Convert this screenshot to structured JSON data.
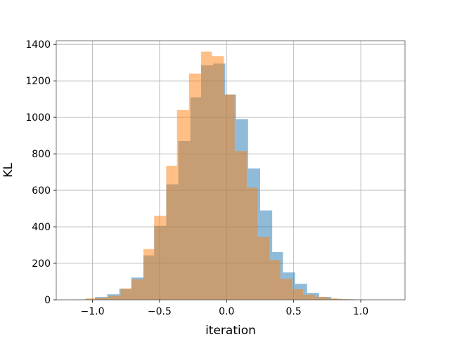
{
  "chart_data": {
    "type": "bar",
    "subtype": "histogram-overlay",
    "title": "",
    "xlabel": "iteration",
    "ylabel": "KL",
    "xlim": [
      -1.27,
      1.33
    ],
    "ylim": [
      0,
      1420
    ],
    "xticks": [
      -1.0,
      -0.5,
      0.0,
      0.5,
      1.0
    ],
    "xtick_labels": [
      "−1.0",
      "−0.5",
      "0.0",
      "0.5",
      "1.0"
    ],
    "yticks": [
      0,
      200,
      400,
      600,
      800,
      1000,
      1200,
      1400
    ],
    "ytick_labels": [
      "0",
      "200",
      "400",
      "600",
      "800",
      "1000",
      "1200",
      "1400"
    ],
    "grid": true,
    "legend": false,
    "series": [
      {
        "color": "#1f77b4",
        "alpha": 0.5,
        "bins": [
          {
            "x0": -1.15,
            "x1": -1.06,
            "count": 1
          },
          {
            "x0": -1.06,
            "x1": -0.98,
            "count": 3
          },
          {
            "x0": -0.98,
            "x1": -0.89,
            "count": 15
          },
          {
            "x0": -0.89,
            "x1": -0.8,
            "count": 30
          },
          {
            "x0": -0.8,
            "x1": -0.71,
            "count": 60
          },
          {
            "x0": -0.71,
            "x1": -0.62,
            "count": 122
          },
          {
            "x0": -0.62,
            "x1": -0.54,
            "count": 243
          },
          {
            "x0": -0.54,
            "x1": -0.45,
            "count": 405
          },
          {
            "x0": -0.45,
            "x1": -0.36,
            "count": 633
          },
          {
            "x0": -0.36,
            "x1": -0.27,
            "count": 870
          },
          {
            "x0": -0.27,
            "x1": -0.19,
            "count": 1110
          },
          {
            "x0": -0.19,
            "x1": -0.1,
            "count": 1285
          },
          {
            "x0": -0.1,
            "x1": -0.01,
            "count": 1295
          },
          {
            "x0": -0.01,
            "x1": 0.07,
            "count": 1125
          },
          {
            "x0": 0.07,
            "x1": 0.16,
            "count": 990
          },
          {
            "x0": 0.16,
            "x1": 0.25,
            "count": 720
          },
          {
            "x0": 0.25,
            "x1": 0.34,
            "count": 490
          },
          {
            "x0": 0.34,
            "x1": 0.42,
            "count": 262
          },
          {
            "x0": 0.42,
            "x1": 0.51,
            "count": 150
          },
          {
            "x0": 0.51,
            "x1": 0.6,
            "count": 88
          },
          {
            "x0": 0.6,
            "x1": 0.69,
            "count": 38
          },
          {
            "x0": 0.69,
            "x1": 0.78,
            "count": 15
          },
          {
            "x0": 0.78,
            "x1": 0.86,
            "count": 5
          },
          {
            "x0": 0.86,
            "x1": 0.95,
            "count": 3
          },
          {
            "x0": 0.95,
            "x1": 1.04,
            "count": 2
          }
        ]
      },
      {
        "color": "#ff7f0e",
        "alpha": 0.5,
        "bins": [
          {
            "x0": -1.05,
            "x1": -0.96,
            "count": 8
          },
          {
            "x0": -0.96,
            "x1": -0.88,
            "count": 12
          },
          {
            "x0": -0.88,
            "x1": -0.79,
            "count": 22
          },
          {
            "x0": -0.79,
            "x1": -0.71,
            "count": 62
          },
          {
            "x0": -0.71,
            "x1": -0.62,
            "count": 112
          },
          {
            "x0": -0.62,
            "x1": -0.54,
            "count": 278
          },
          {
            "x0": -0.54,
            "x1": -0.45,
            "count": 460
          },
          {
            "x0": -0.45,
            "x1": -0.37,
            "count": 735
          },
          {
            "x0": -0.37,
            "x1": -0.28,
            "count": 1040
          },
          {
            "x0": -0.28,
            "x1": -0.19,
            "count": 1240
          },
          {
            "x0": -0.19,
            "x1": -0.11,
            "count": 1360
          },
          {
            "x0": -0.11,
            "x1": -0.02,
            "count": 1335
          },
          {
            "x0": -0.02,
            "x1": 0.06,
            "count": 1125
          },
          {
            "x0": 0.06,
            "x1": 0.15,
            "count": 815
          },
          {
            "x0": 0.15,
            "x1": 0.23,
            "count": 615
          },
          {
            "x0": 0.23,
            "x1": 0.32,
            "count": 345
          },
          {
            "x0": 0.32,
            "x1": 0.4,
            "count": 218
          },
          {
            "x0": 0.4,
            "x1": 0.49,
            "count": 115
          },
          {
            "x0": 0.49,
            "x1": 0.57,
            "count": 58
          },
          {
            "x0": 0.57,
            "x1": 0.66,
            "count": 28
          },
          {
            "x0": 0.66,
            "x1": 0.75,
            "count": 16
          },
          {
            "x0": 0.75,
            "x1": 0.83,
            "count": 8
          },
          {
            "x0": 0.83,
            "x1": 0.92,
            "count": 4
          }
        ]
      }
    ]
  }
}
